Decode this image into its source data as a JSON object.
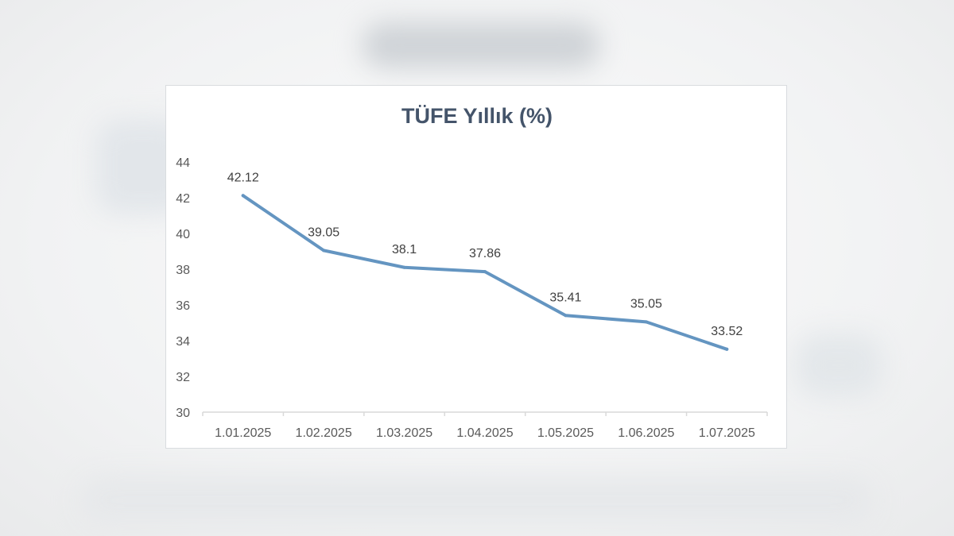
{
  "chart_data": {
    "type": "line",
    "title": "TÜFE Yıllık (%)",
    "xlabel": "",
    "ylabel": "",
    "categories": [
      "1.01.2025",
      "1.02.2025",
      "1.03.2025",
      "1.04.2025",
      "1.05.2025",
      "1.06.2025",
      "1.07.2025"
    ],
    "series": [
      {
        "values": [
          42.12,
          39.05,
          38.1,
          37.86,
          35.41,
          35.05,
          33.52
        ],
        "color": "#6495c1"
      }
    ],
    "data_labels": [
      "42.12",
      "39.05",
      "38.1",
      "37.86",
      "35.41",
      "35.05",
      "33.52"
    ],
    "ylim": [
      30,
      44
    ],
    "yticks": [
      30,
      32,
      34,
      36,
      38,
      40,
      42,
      44
    ],
    "ytick_labels": [
      "30",
      "32",
      "34",
      "36",
      "38",
      "40",
      "42",
      "44"
    ],
    "grid": false,
    "legend": "none"
  }
}
